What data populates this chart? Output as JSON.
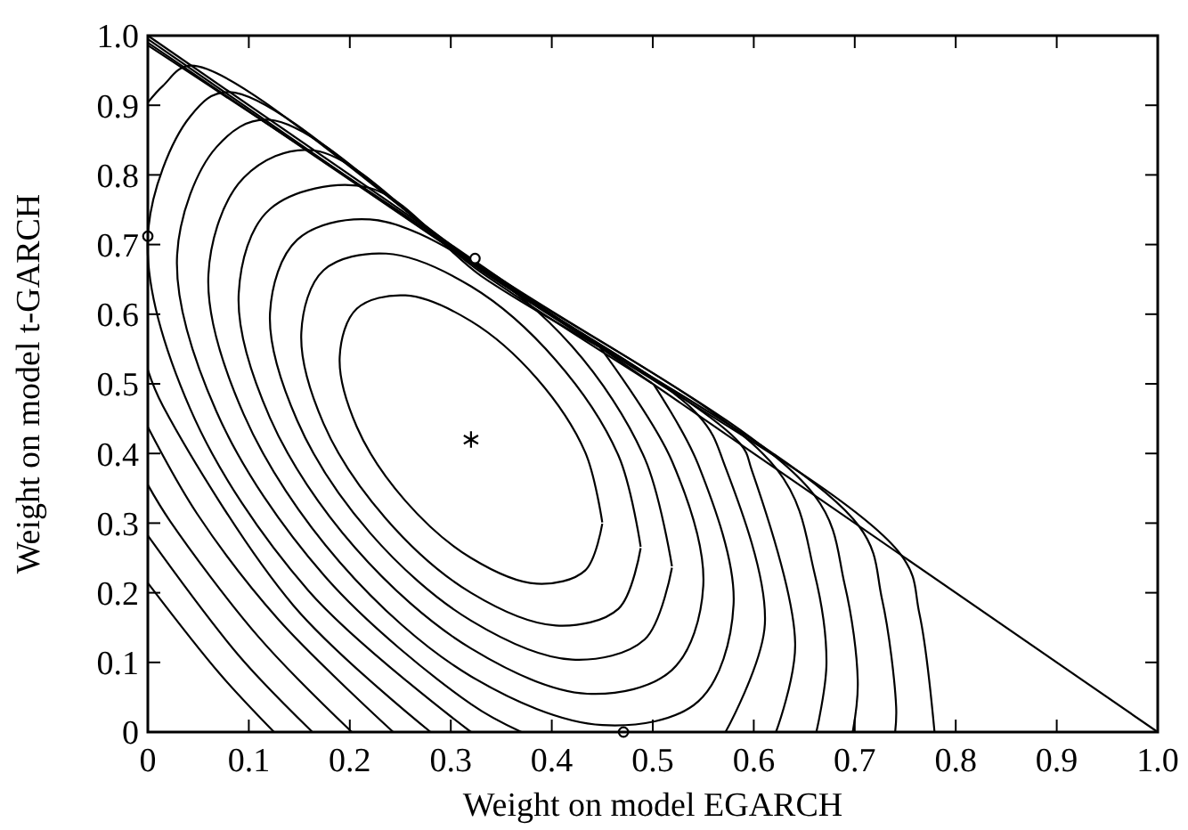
{
  "chart_data": {
    "type": "line",
    "xlabel": "Weight on model EGARCH",
    "ylabel": "Weight on model t-GARCH",
    "xlim": [
      0,
      1
    ],
    "ylim": [
      0,
      1
    ],
    "xticks": [
      0,
      0.1,
      0.2,
      0.3,
      0.4,
      0.5,
      0.6,
      0.7,
      0.8,
      0.9,
      {
        "value": 1,
        "label": "1.0"
      }
    ],
    "yticks": [
      0,
      0.1,
      0.2,
      0.3,
      0.4,
      0.5,
      0.6,
      0.7,
      0.8,
      0.9,
      {
        "value": 1,
        "label": "1.0"
      }
    ],
    "series": [
      {
        "type": "line",
        "color": "#000000",
        "x": [
          0,
          1
        ],
        "values": [
          1,
          0
        ]
      },
      {
        "type": "line",
        "color": "#000000",
        "x": [
          0.45,
          0.433,
          0.385,
          0.32,
          0.255,
          0.207,
          0.19,
          0.207,
          0.255,
          0.32,
          0.385,
          0.433,
          0.45
        ],
        "values": [
          0.301,
          0.402,
          0.508,
          0.59,
          0.627,
          0.608,
          0.539,
          0.438,
          0.332,
          0.25,
          0.213,
          0.232,
          0.299
        ]
      },
      {
        "type": "line",
        "color": "#000000",
        "x": [
          0.488,
          0.466,
          0.404,
          0.32,
          0.236,
          0.174,
          0.152,
          0.174,
          0.236,
          0.32,
          0.404,
          0.466,
          0.488
        ],
        "values": [
          0.266,
          0.397,
          0.534,
          0.64,
          0.687,
          0.663,
          0.574,
          0.443,
          0.306,
          0.2,
          0.153,
          0.177,
          0.264
        ]
      },
      {
        "type": "line",
        "color": "#000000",
        "x": [
          0.519,
          0.492,
          0.42,
          0.32,
          0.22,
          0.148,
          0.121,
          0.148,
          0.22,
          0.32,
          0.42,
          0.492,
          0.519
        ],
        "values": [
          0.238,
          0.393,
          0.554,
          0.675,
          0.736,
          0.707,
          0.602,
          0.447,
          0.286,
          0.16,
          0.104,
          0.133,
          0.236
        ]
      },
      {
        "type": "line",
        "color": "#000000",
        "x": [
          0.448,
          0.519,
          0.55,
          0.519,
          0.435,
          0.32,
          0.205,
          0.121,
          0.09,
          0.121,
          0.218,
          0.33,
          0.446
        ],
        "values": [
          0.552,
          0.389,
          0.21,
          0.089,
          0.055,
          0.12,
          0.265,
          0.451,
          0.63,
          0.751,
          0.782,
          0.655,
          0.554
        ]
      },
      {
        "type": "line",
        "color": "#000000",
        "x": [
          0.501,
          0.545,
          0.58,
          0.545,
          0.45,
          0.32,
          0.19,
          0.095,
          0.06,
          0.095,
          0.165,
          0.33,
          0.499
        ],
        "values": [
          0.499,
          0.384,
          0.183,
          0.044,
          0.01,
          0.08,
          0.244,
          0.456,
          0.657,
          0.796,
          0.835,
          0.66,
          0.501
        ]
      },
      {
        "type": "line",
        "color": "#000000",
        "x": [
          0.572,
          0.611,
          0.572,
          0.545,
          0.33,
          0.121,
          0.068,
          0.029,
          0.068,
          0.175,
          0.32,
          0.37
        ],
        "values": [
          0,
          0.155,
          0.38,
          0.455,
          0.663,
          0.879,
          0.84,
          0.685,
          0.46,
          0.224,
          0.04,
          0
        ]
      },
      {
        "type": "line",
        "color": "#000000",
        "x": [
          0.622,
          0.641,
          0.598,
          0.586,
          0.33,
          0.081,
          0.042,
          0,
          0.042,
          0.159,
          0.32
        ],
        "values": [
          0,
          0.127,
          0.376,
          0.415,
          0.666,
          0.919,
          0.884,
          0.712,
          0.464,
          0.203,
          0
        ]
      },
      {
        "type": "line",
        "color": "#000000",
        "x": [
          0.662,
          0.672,
          0.66,
          0.623,
          0.33,
          0.043,
          0.015,
          0
        ],
        "values": [
          0,
          0.099,
          0.229,
          0.377,
          0.668,
          0.957,
          0.928,
          0.904
        ]
      },
      {
        "type": "line",
        "color": "#000000",
        "x": [
          0,
          0.015,
          0.144,
          0.28
        ],
        "values": [
          0.52,
          0.468,
          0.182,
          0
        ]
      },
      {
        "type": "line",
        "color": "#000000",
        "x": [
          0.698,
          0.703,
          0.69,
          0.66,
          0.33,
          0
        ],
        "values": [
          0,
          0.071,
          0.212,
          0.34,
          0.669,
          0.986
        ]
      },
      {
        "type": "line",
        "color": "#000000",
        "x": [
          0,
          0.049,
          0.129,
          0.243
        ],
        "values": [
          0.438,
          0.313,
          0.162,
          0
        ]
      },
      {
        "type": "line",
        "color": "#000000",
        "x": [
          0,
          0.35,
          0.704,
          0.727,
          0.741,
          0.74
        ],
        "values": [
          0.99,
          0.645,
          0.296,
          0.191,
          0.036,
          0
        ]
      },
      {
        "type": "line",
        "color": "#000000",
        "x": [
          0,
          0.022,
          0.11,
          0.202
        ],
        "values": [
          0.355,
          0.303,
          0.136,
          0
        ]
      },
      {
        "type": "line",
        "color": "#000000",
        "x": [
          0,
          0.36,
          0.746,
          0.764,
          0.779
        ],
        "values": [
          0.995,
          0.635,
          0.254,
          0.17,
          0
        ]
      },
      {
        "type": "line",
        "color": "#000000",
        "x": [
          0,
          0.09,
          0.163
        ],
        "values": [
          0.282,
          0.11,
          0
        ]
      },
      {
        "type": "line",
        "color": "#000000",
        "x": [
          0,
          0.071,
          0.125
        ],
        "values": [
          0.214,
          0.084,
          0
        ]
      },
      {
        "type": "scatter",
        "color": "#000000",
        "marker": "cross",
        "x": [
          0.32
        ],
        "values": [
          0.42
        ]
      },
      {
        "type": "scatter",
        "color": "#000000",
        "marker": "circle",
        "x": [
          0,
          0.324,
          0.471
        ],
        "values": [
          0.712,
          0.68,
          0
        ]
      }
    ]
  }
}
